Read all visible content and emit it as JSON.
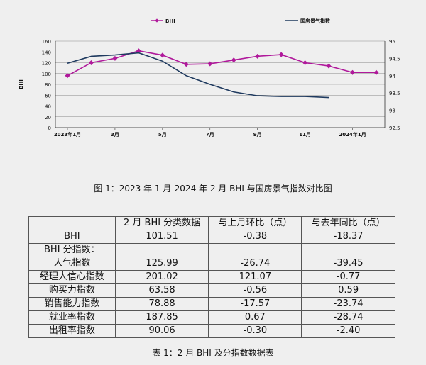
{
  "chart_data": {
    "type": "line",
    "x": [
      "2023-01",
      "2023-02",
      "2023-03",
      "2023-04",
      "2023-05",
      "2023-06",
      "2023-07",
      "2023-08",
      "2023-09",
      "2023-10",
      "2023-11",
      "2023-12",
      "2024-01",
      "2024-02"
    ],
    "x_tick_labels": [
      "2023年1月",
      "3月",
      "5月",
      "7月",
      "9月",
      "11月",
      "2024年1月"
    ],
    "ylabel_left": "BHI",
    "ylim_left": [
      0,
      160
    ],
    "yticks_left": [
      "0",
      "20",
      "40",
      "60",
      "80",
      "100",
      "120",
      "140",
      "160"
    ],
    "ylim_right": [
      92.5,
      95
    ],
    "yticks_right": [
      "92.5",
      "93",
      "93.5",
      "94",
      "94.5",
      "95"
    ],
    "legend_position": "top",
    "series": [
      {
        "name": "BHI",
        "axis": "left",
        "color": "#b0199b",
        "marker": "diamond",
        "values": [
          96,
          120,
          128,
          142,
          134,
          117,
          118,
          125,
          132,
          135,
          120,
          114,
          102,
          102
        ]
      },
      {
        "name": "国房景气指数",
        "axis": "right",
        "color": "#1f3a5f",
        "marker": "none",
        "values": [
          94.36,
          94.56,
          94.6,
          94.66,
          94.42,
          94.0,
          93.75,
          93.53,
          93.42,
          93.4,
          93.4,
          93.37,
          null,
          null
        ]
      }
    ]
  },
  "figure_caption": "图 1：2023 年 1 月-2024 年 2 月 BHI 与国房景气指数对比图",
  "table": {
    "headers": [
      "",
      "2 月 BHI 分类数据",
      "与上月环比（点）",
      "与去年同比（点）"
    ],
    "bhi_row": [
      "BHI",
      "101.51",
      "-0.38",
      "-18.37"
    ],
    "section_label": "BHI 分指数：",
    "rows": [
      [
        "人气指数",
        "125.99",
        "-26.74",
        "-39.45"
      ],
      [
        "经理人信心指数",
        "201.02",
        "121.07",
        "-0.77"
      ],
      [
        "购买力指数",
        "63.58",
        "-0.56",
        "0.59"
      ],
      [
        "销售能力指数",
        "78.88",
        "-17.57",
        "-23.74"
      ],
      [
        "就业率指数",
        "187.85",
        "0.67",
        "-28.74"
      ],
      [
        "出租率指数",
        "90.06",
        "-0.30",
        "-2.40"
      ]
    ]
  },
  "table_caption": "表 1：2 月 BHI 及分指数数据表"
}
